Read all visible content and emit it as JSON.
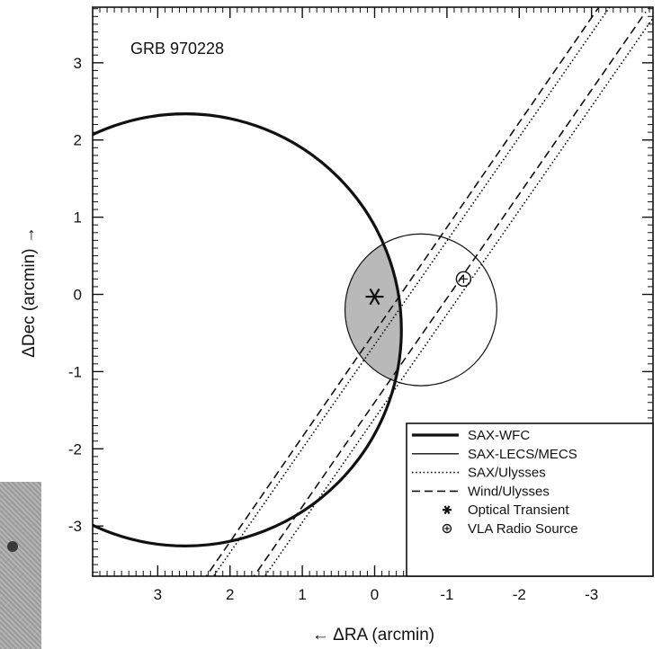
{
  "chart_data": {
    "type": "scatter",
    "title": "GRB 970228",
    "xlabel": "← ΔRA (arcmin)",
    "ylabel": "ΔDec (arcmin)  →",
    "xlim": [
      3.9,
      -3.85
    ],
    "ylim": [
      -3.65,
      3.72
    ],
    "xticks": [
      3,
      2,
      1,
      0,
      -1,
      -2,
      -3
    ],
    "yticks": [
      3,
      2,
      1,
      0,
      -1,
      -2,
      -3
    ],
    "xtick_labels": [
      "3",
      "2",
      "1",
      "0",
      "-1",
      "-2",
      "-3"
    ],
    "ytick_labels": [
      "3",
      "2",
      "1",
      "0",
      "-1",
      "-2",
      "-3"
    ],
    "shaded_region": "intersection of SAX-WFC and SAX-LECS/MECS error circles",
    "series": [
      {
        "name": "SAX-WFC",
        "style": "solid-thick",
        "shape": "circle",
        "center": [
          2.62,
          -0.46
        ],
        "radius": 2.99
      },
      {
        "name": "SAX-LECS/MECS",
        "style": "solid-thin",
        "shape": "circle",
        "center": [
          -0.64,
          -0.2
        ],
        "radius": 1.05
      },
      {
        "name": "SAX/Ulysses",
        "style": "dotted",
        "shape": "band",
        "lines": [
          [
            [
              2.28,
              -3.72
            ],
            [
              -3.25,
              3.72
            ]
          ],
          [
            [
              1.57,
              -3.72
            ],
            [
              -3.85,
              3.58
            ]
          ]
        ]
      },
      {
        "name": "Wind/Ulysses",
        "style": "dashed",
        "shape": "band",
        "lines": [
          [
            [
              2.38,
              -3.72
            ],
            [
              -3.1,
              3.72
            ]
          ],
          [
            [
              1.72,
              -3.72
            ],
            [
              -3.75,
              3.66
            ]
          ]
        ]
      },
      {
        "name": "Optical Transient",
        "style": "asterisk",
        "shape": "point",
        "x": 0.0,
        "y": -0.03
      },
      {
        "name": "VLA Radio Source",
        "style": "circle-dot",
        "shape": "point",
        "x": -1.23,
        "y": 0.2
      }
    ],
    "legend": {
      "placement": "bottom-right",
      "entries": [
        "SAX-WFC",
        "SAX-LECS/MECS",
        "SAX/Ulysses",
        "Wind/Ulysses",
        "Optical Transient",
        "VLA Radio Source"
      ]
    },
    "grid": false
  },
  "colors": {
    "ink": "#111111",
    "shade": "#b9b9b9",
    "inset": "#a6a6a6"
  }
}
